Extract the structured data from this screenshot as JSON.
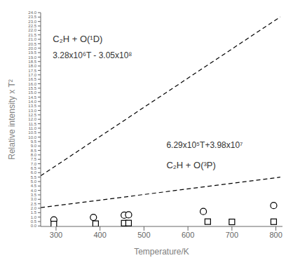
{
  "chart_data": {
    "type": "scatter",
    "xlabel": "Temperature/K",
    "ylabel": "Relative intensity x T²",
    "grid": false,
    "xlim": [
      265,
      815
    ],
    "ylim": [
      -0.05,
      24.0
    ],
    "xticks": [
      300,
      400,
      500,
      600,
      700,
      800
    ],
    "yticks": [
      {
        "value": 0,
        "label": "0.0"
      },
      0.5,
      {
        "value": 1,
        "label": "1.0"
      },
      1.5,
      {
        "value": 2,
        "label": "2.0"
      },
      2.5,
      {
        "value": 3,
        "label": "3.0"
      },
      3.5,
      {
        "value": 4,
        "label": "4.0"
      },
      4.5,
      {
        "value": 5,
        "label": "5.0"
      },
      5.5,
      {
        "value": 6,
        "label": "6.0"
      },
      6.5,
      {
        "value": 7,
        "label": "7.0"
      },
      7.5,
      {
        "value": 8,
        "label": "8.0"
      },
      8.5,
      {
        "value": 9,
        "label": "9.0"
      },
      9.5,
      {
        "value": 10,
        "label": "10.0"
      },
      10.5,
      {
        "value": 11,
        "label": "11.0"
      },
      11.5,
      {
        "value": 12,
        "label": "12.0"
      },
      12.5,
      {
        "value": 13,
        "label": "13.0"
      },
      13.5,
      {
        "value": 14,
        "label": "14.0"
      },
      14.5,
      {
        "value": 15,
        "label": "15.0"
      },
      15.5,
      {
        "value": 16,
        "label": "16.0"
      },
      16.5,
      {
        "value": 17,
        "label": "17.0"
      },
      17.5,
      {
        "value": 18,
        "label": "18.0"
      },
      18.5,
      {
        "value": 19,
        "label": "19.0"
      },
      19.5,
      {
        "value": 20,
        "label": "20.0"
      },
      20.5,
      {
        "value": 21,
        "label": "21.0"
      },
      21.5,
      {
        "value": 22,
        "label": "22.0"
      },
      22.5,
      {
        "value": 23,
        "label": "23.0"
      },
      23.5,
      {
        "value": 24,
        "label": "24.0"
      }
    ],
    "series": [
      {
        "type": "line",
        "line_style": "dashed",
        "color": "black",
        "x": [
          265,
          810
        ],
        "values": [
          5.642,
          23.518
        ]
      },
      {
        "type": "line",
        "line_style": "dashed",
        "color": "black",
        "x": [
          265,
          810
        ],
        "values": [
          2.06485,
          5.4929
        ]
      },
      {
        "type": "scatter",
        "marker": "circle",
        "color": "black",
        "x": [
          295,
          385,
          455,
          465,
          635,
          795
        ],
        "values": [
          0.69,
          0.97,
          1.22,
          1.26,
          1.63,
          2.3
        ]
      },
      {
        "type": "scatter",
        "marker": "square",
        "color": "black",
        "x": [
          295,
          390,
          455,
          465,
          645,
          700,
          795
        ],
        "values": [
          0.22,
          0.26,
          0.32,
          0.33,
          0.49,
          0.46,
          0.48
        ]
      }
    ],
    "annotations": [
      {
        "text": "3.28x10⁶T - 3.05x10⁸"
      },
      {
        "text": "6.29x10⁵T+3.98x10⁷"
      },
      {
        "text": "C₂H + O(¹D)"
      },
      {
        "text": "C₂H + O(³P)"
      }
    ]
  }
}
